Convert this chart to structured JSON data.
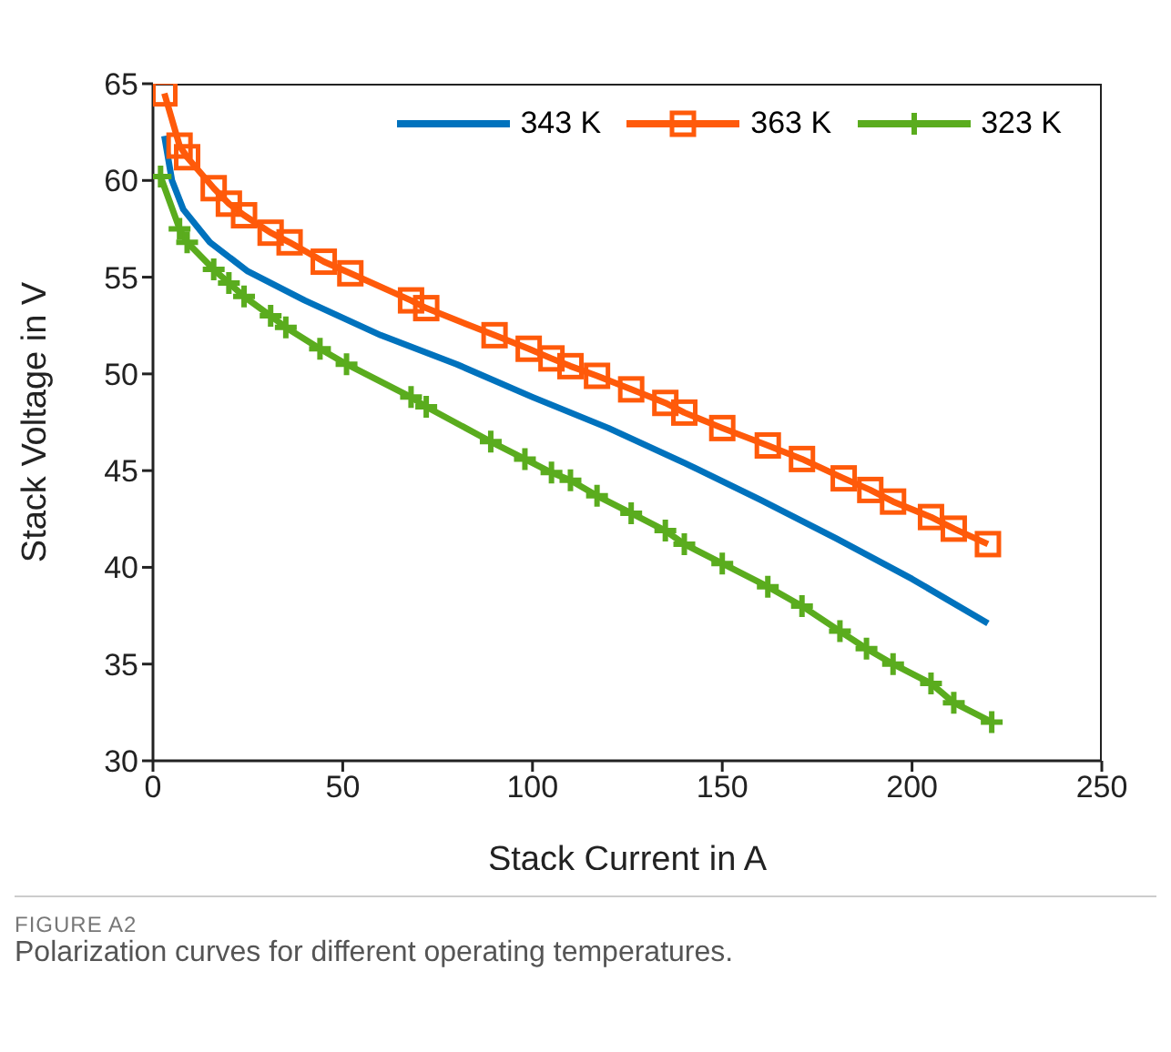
{
  "chart_data": {
    "type": "line",
    "xlabel": "Stack Current in A",
    "ylabel": "Stack Voltage in V",
    "xlim": [
      0,
      250
    ],
    "xticks": [
      0,
      50,
      100,
      150,
      200,
      250
    ],
    "ylim": [
      30,
      65
    ],
    "yticks": [
      30,
      35,
      40,
      45,
      50,
      55,
      60,
      65
    ],
    "grid": false,
    "legend": "top right",
    "line_style": "solid",
    "annotations": [
      "FIGURE A2",
      "Polarization curves for different operating temperatures."
    ],
    "series": [
      {
        "name": "343 K",
        "color": "#0072bd",
        "marker": "none",
        "x": [
          3,
          5,
          8,
          15,
          25,
          40,
          60,
          80,
          100,
          120,
          140,
          160,
          180,
          200,
          220
        ],
        "values": [
          62.3,
          60,
          58.5,
          56.8,
          55.3,
          53.8,
          52,
          50.5,
          48.8,
          47.2,
          45.4,
          43.5,
          41.5,
          39.4,
          37.1
        ]
      },
      {
        "name": "363 K",
        "color": "#ff5a0a",
        "marker": "square",
        "x": [
          3,
          7,
          9,
          16,
          20,
          24,
          31,
          36,
          45,
          52,
          68,
          72,
          90,
          99,
          105,
          110,
          117,
          126,
          135,
          140,
          150,
          162,
          171,
          182,
          189,
          195,
          205,
          211,
          220
        ],
        "values": [
          64.5,
          61.8,
          61.2,
          59.6,
          58.8,
          58.2,
          57.3,
          56.8,
          55.8,
          55.2,
          53.8,
          53.4,
          52,
          51.3,
          50.8,
          50.4,
          49.9,
          49.2,
          48.5,
          48,
          47.2,
          46.3,
          45.6,
          44.6,
          44,
          43.4,
          42.6,
          42,
          41.2
        ]
      },
      {
        "name": "323 K",
        "color": "#5aac1e",
        "marker": "cross",
        "x": [
          2,
          7,
          9,
          16,
          20,
          24,
          31,
          35,
          44,
          51,
          68,
          72,
          89,
          98,
          105,
          110,
          117,
          126,
          135,
          140,
          150,
          162,
          171,
          181,
          188,
          195,
          205,
          211,
          221
        ],
        "values": [
          60.2,
          57.5,
          56.8,
          55.4,
          54.7,
          54,
          53,
          52.4,
          51.3,
          50.5,
          48.8,
          48.3,
          46.5,
          45.6,
          44.9,
          44.5,
          43.7,
          42.8,
          41.9,
          41.2,
          40.2,
          39,
          38,
          36.7,
          35.8,
          35,
          34,
          33,
          32
        ]
      }
    ]
  }
}
